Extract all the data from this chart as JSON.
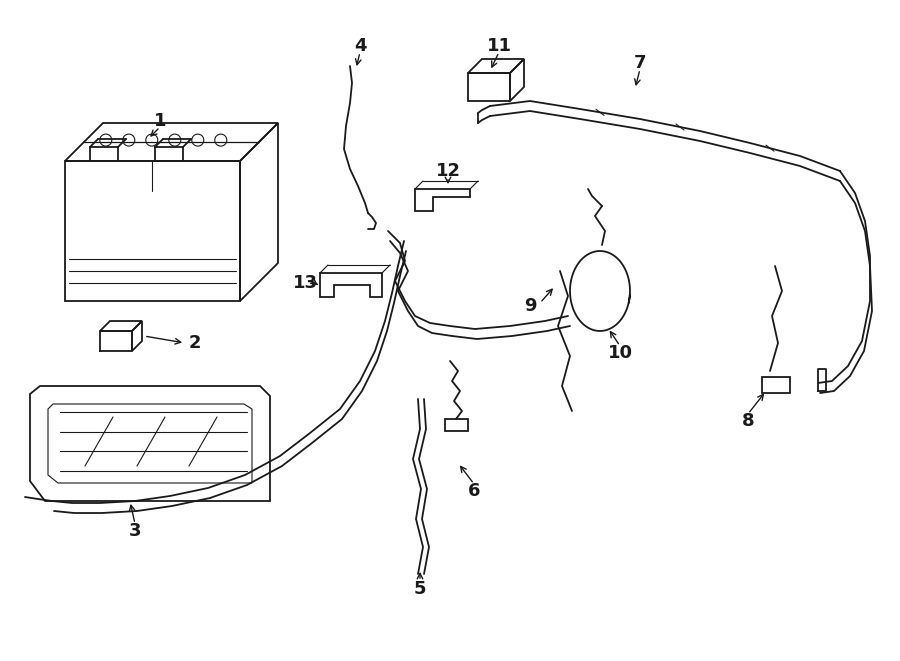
{
  "bg_color": "#ffffff",
  "line_color": "#1a1a1a",
  "lw": 1.3,
  "lw_thin": 0.8,
  "fig_w": 9.0,
  "fig_h": 6.61,
  "dpi": 100
}
